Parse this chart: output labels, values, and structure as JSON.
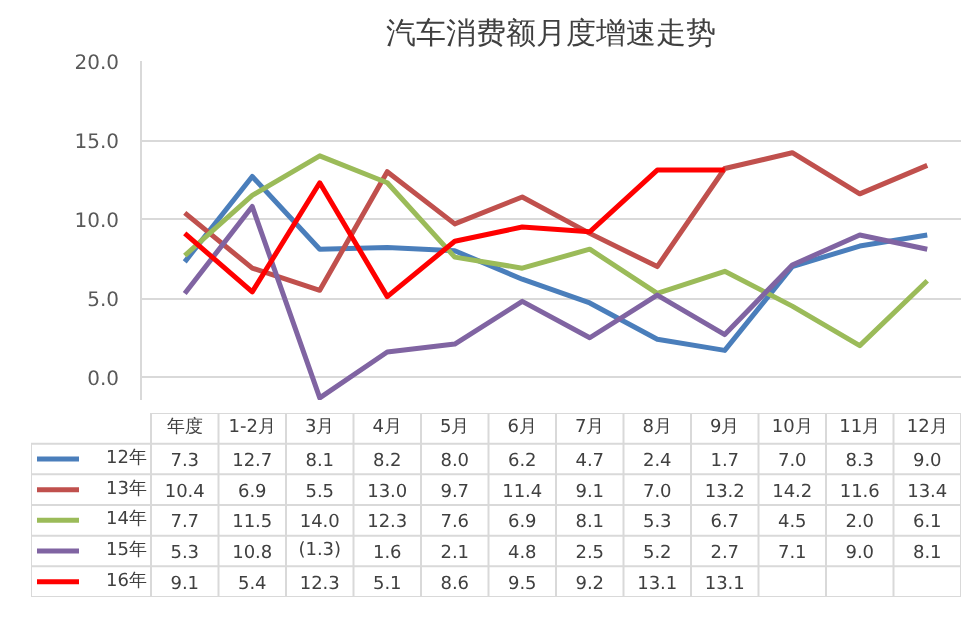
{
  "chart_data": {
    "type": "line",
    "title": "汽车消费额月度增速走势",
    "categories": [
      "年度",
      "1-2月",
      "3月",
      "4月",
      "5月",
      "6月",
      "7月",
      "8月",
      "9月",
      "10月",
      "11月",
      "12月"
    ],
    "ylim": [
      -1.5,
      20
    ],
    "yticks": [
      {
        "value": 0,
        "label": "0.0"
      },
      {
        "value": 5,
        "label": "5.0"
      },
      {
        "value": 10,
        "label": "10.0"
      },
      {
        "value": 15,
        "label": "15.0"
      },
      {
        "value": 20,
        "label": "20.0"
      }
    ],
    "grid": "y",
    "legend": "bottom",
    "marker": "none",
    "line_style": "solid",
    "series": [
      {
        "name": "12年",
        "color": "#4a7ebb",
        "values": [
          7.3,
          12.7,
          8.1,
          8.2,
          8.0,
          6.2,
          4.7,
          2.4,
          1.7,
          7.0,
          8.3,
          9.0
        ],
        "value_labels": [
          "7.3",
          "12.7",
          "8.1",
          "8.2",
          "8.0",
          "6.2",
          "4.7",
          "2.4",
          "1.7",
          "7.0",
          "8.3",
          "9.0"
        ]
      },
      {
        "name": "13年",
        "color": "#c0504d",
        "values": [
          10.4,
          6.9,
          5.5,
          13.0,
          9.7,
          11.4,
          9.1,
          7.0,
          13.2,
          14.2,
          11.6,
          13.4
        ],
        "value_labels": [
          "10.4",
          "6.9",
          "5.5",
          "13.0",
          "9.7",
          "11.4",
          "9.1",
          "7.0",
          "13.2",
          "14.2",
          "11.6",
          "13.4"
        ]
      },
      {
        "name": "14年",
        "color": "#9bbb59",
        "values": [
          7.7,
          11.5,
          14.0,
          12.3,
          7.6,
          6.9,
          8.1,
          5.3,
          6.7,
          4.5,
          2.0,
          6.1
        ],
        "value_labels": [
          "7.7",
          "11.5",
          "14.0",
          "12.3",
          "7.6",
          "6.9",
          "8.1",
          "5.3",
          "6.7",
          "4.5",
          "2.0",
          "6.1"
        ]
      },
      {
        "name": "15年",
        "color": "#8064a2",
        "values": [
          5.3,
          10.8,
          -1.3,
          1.6,
          2.1,
          4.8,
          2.5,
          5.2,
          2.7,
          7.1,
          9.0,
          8.1
        ],
        "value_labels": [
          "5.3",
          "10.8",
          "(1.3)",
          "1.6",
          "2.1",
          "4.8",
          "2.5",
          "5.2",
          "2.7",
          "7.1",
          "9.0",
          "8.1"
        ]
      },
      {
        "name": "16年",
        "color": "#ff0000",
        "values": [
          9.1,
          5.4,
          12.3,
          5.1,
          8.6,
          9.5,
          9.2,
          13.1,
          13.1,
          null,
          null,
          null
        ],
        "value_labels": [
          "9.1",
          "5.4",
          "12.3",
          "5.1",
          "8.6",
          "9.5",
          "9.2",
          "13.1",
          "13.1",
          null,
          null,
          null
        ]
      }
    ]
  }
}
